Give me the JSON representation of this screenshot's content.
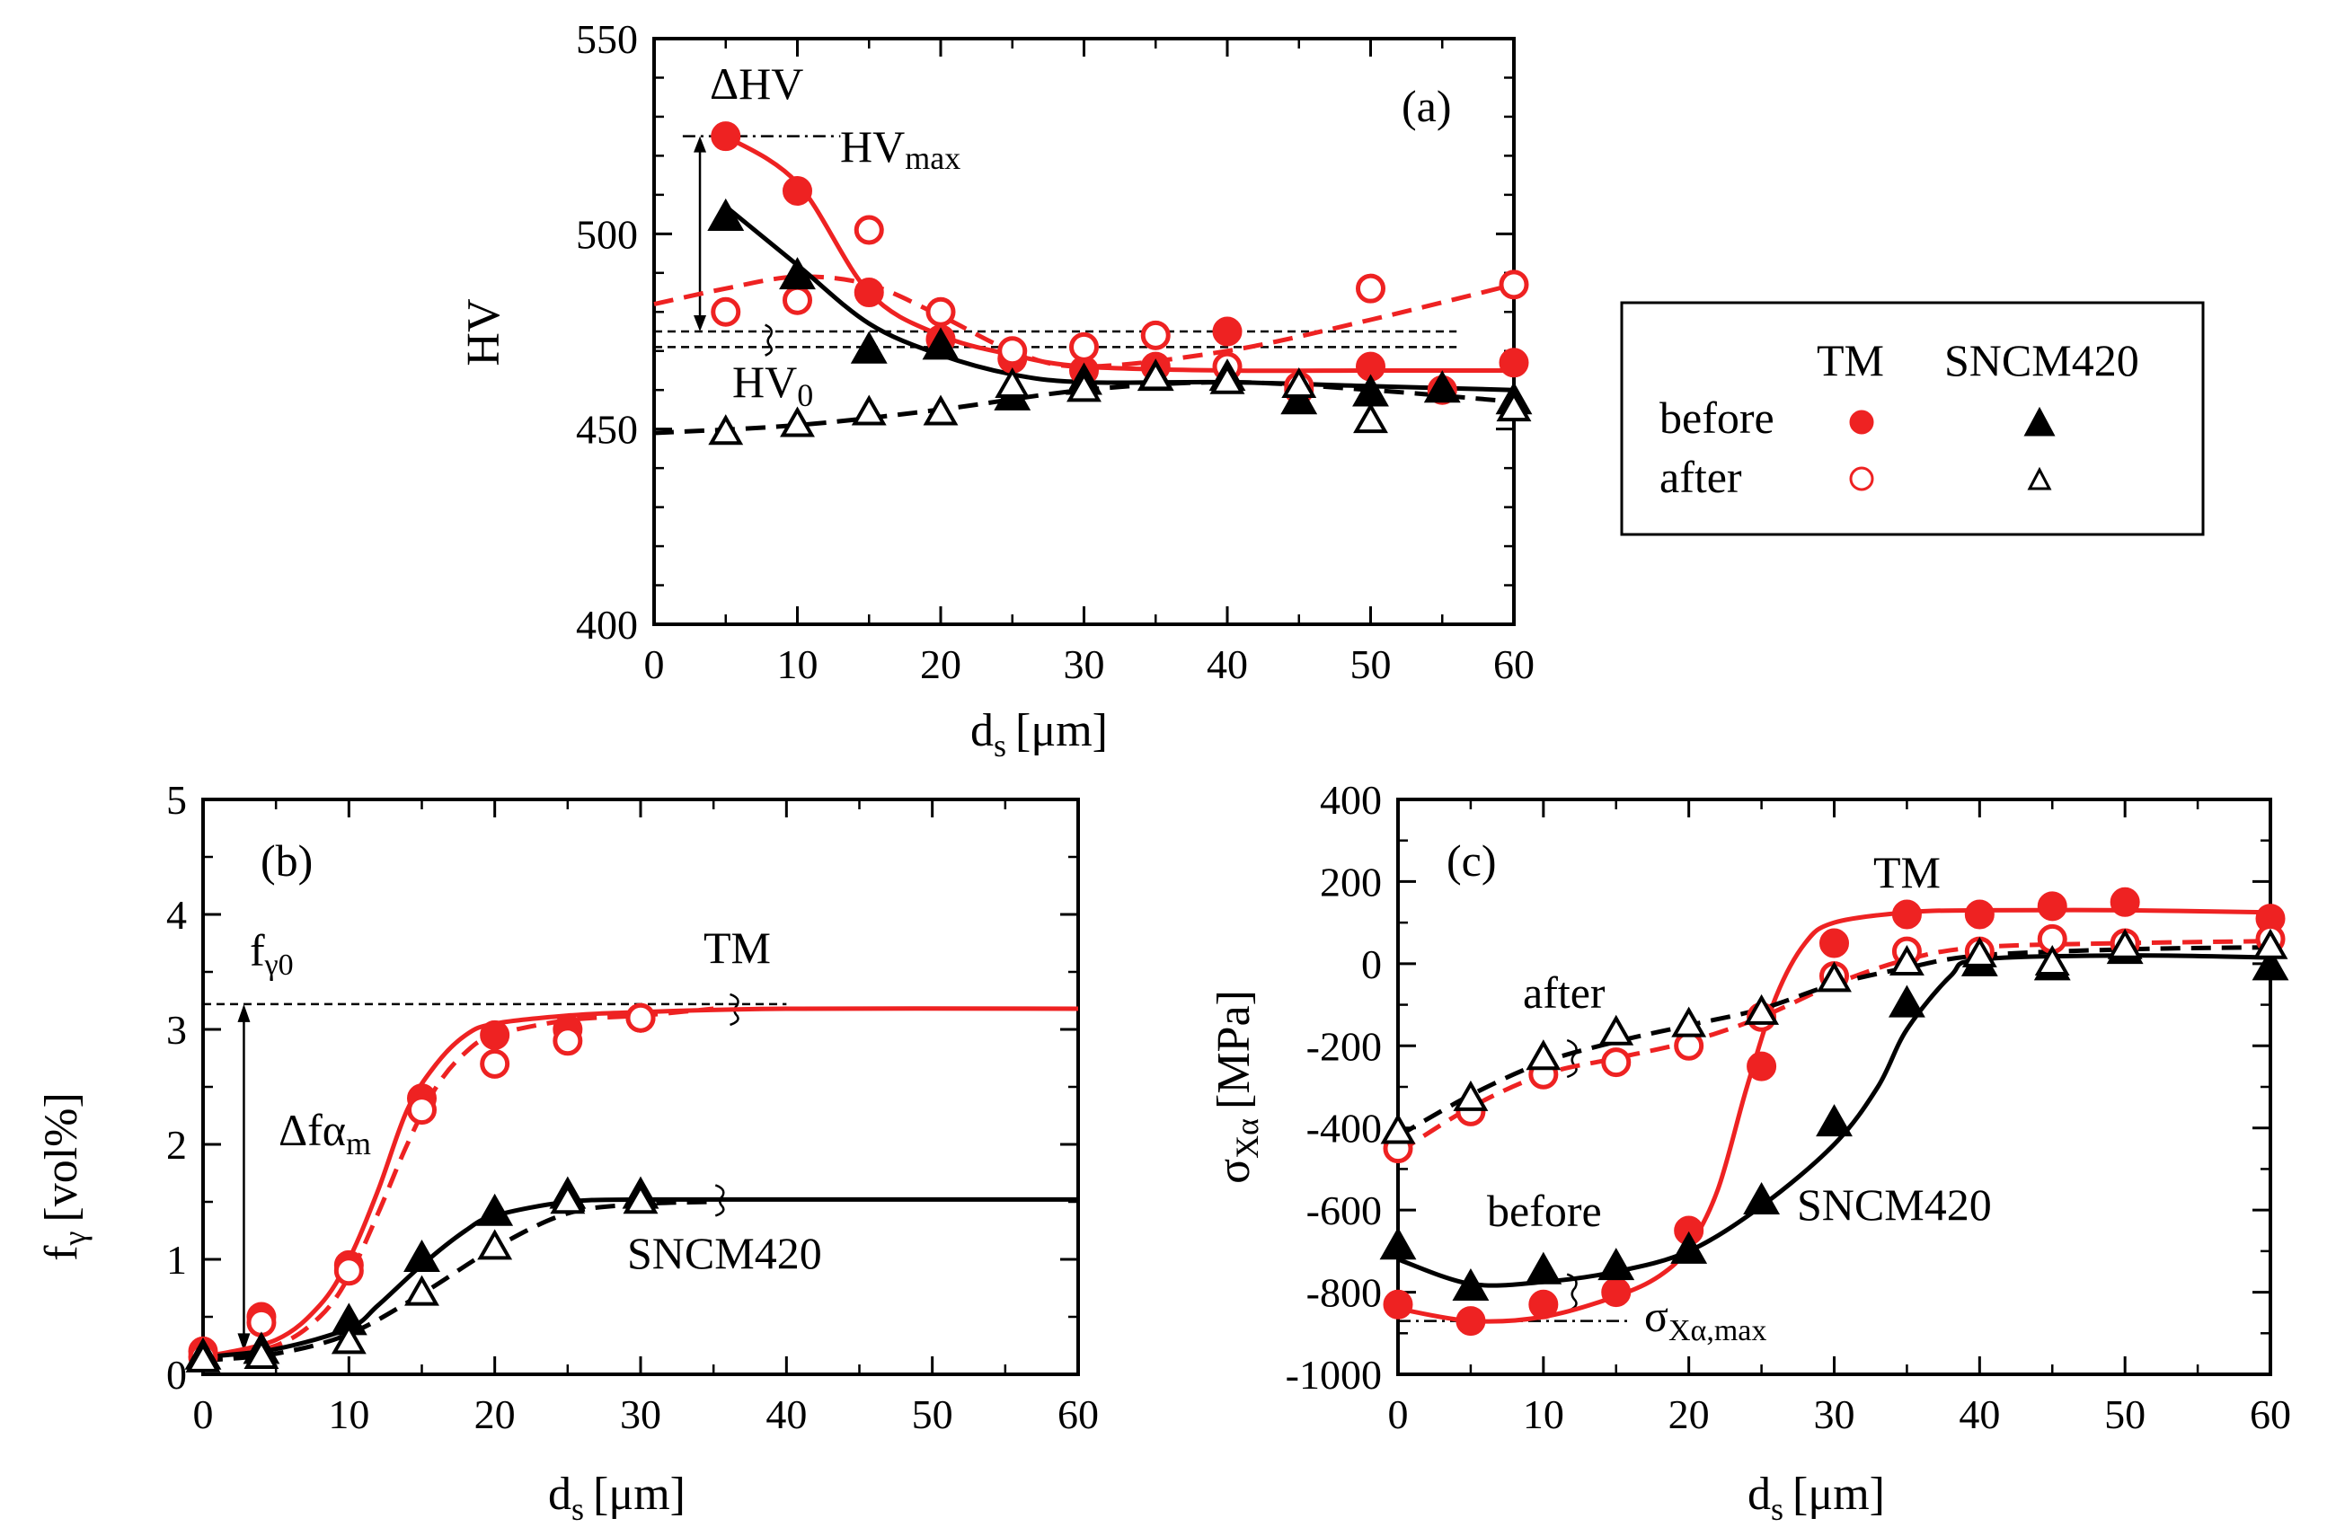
{
  "chart_data": [
    {
      "id": "a",
      "type": "scatter",
      "panel_label": "(a)",
      "xlabel": "d",
      "xlabel_sub": "s",
      "xlabel_unit": "[μm]",
      "ylabel": "HV",
      "xlim": [
        0,
        60
      ],
      "ylim": [
        400,
        550
      ],
      "xticks": [
        0,
        10,
        20,
        30,
        40,
        50,
        60
      ],
      "yticks": [
        400,
        450,
        500,
        550
      ],
      "series": [
        {
          "name": "TM before",
          "color": "#ee2222",
          "marker": "circle",
          "filled": true,
          "x": [
            5,
            10,
            15,
            20,
            25,
            30,
            35,
            40,
            45,
            50,
            55,
            60
          ],
          "y": [
            525,
            511,
            485,
            473,
            468,
            465,
            466,
            475,
            460,
            466,
            460,
            467
          ],
          "fit": {
            "dash": false,
            "x": [
              5,
              10,
              15,
              20,
              25,
              30,
              40,
              50,
              60
            ],
            "y": [
              525,
              513,
              485,
              474,
              469,
              466,
              465,
              465,
              465
            ]
          }
        },
        {
          "name": "TM after",
          "color": "#ee2222",
          "marker": "circle",
          "filled": false,
          "x": [
            5,
            10,
            15,
            20,
            25,
            30,
            35,
            40,
            45,
            50,
            60
          ],
          "y": [
            480,
            483,
            501,
            480,
            470,
            471,
            474,
            466,
            461,
            486,
            487
          ],
          "fit": {
            "dash": true,
            "x": [
              0,
              5,
              10,
              15,
              20,
              25,
              30,
              40,
              50,
              60
            ],
            "y": [
              482,
              486,
              489,
              487,
              479,
              470,
              466,
              470,
              478,
              487
            ]
          }
        },
        {
          "name": "SNCM420 before",
          "color": "#000000",
          "marker": "triangle",
          "filled": true,
          "x": [
            5,
            10,
            15,
            20,
            25,
            30,
            35,
            40,
            45,
            50,
            55,
            60
          ],
          "y": [
            504,
            489,
            470,
            471,
            458,
            462,
            463,
            463,
            457,
            459,
            460,
            457
          ],
          "fit": {
            "dash": false,
            "x": [
              5,
              10,
              15,
              20,
              25,
              30,
              40,
              50,
              60
            ],
            "y": [
              507,
              492,
              477,
              469,
              464,
              462,
              462,
              461,
              460
            ]
          }
        },
        {
          "name": "SNCM420 after",
          "color": "#000000",
          "marker": "triangle",
          "filled": false,
          "x": [
            5,
            10,
            15,
            20,
            25,
            30,
            35,
            40,
            45,
            50,
            60
          ],
          "y": [
            449,
            451,
            454,
            454,
            461,
            460,
            463,
            462,
            461,
            452,
            455
          ],
          "fit": {
            "dash": true,
            "x": [
              0,
              10,
              20,
              30,
              40,
              50,
              60
            ],
            "y": [
              449,
              451,
              455,
              460,
              462,
              460,
              457
            ]
          }
        }
      ],
      "annotations": [
        "ΔHV",
        "HV",
        "max",
        "HV",
        "0"
      ],
      "reference_lines": {
        "hv_max": 525,
        "hv0_upper": 475,
        "hv0_lower": 471
      }
    },
    {
      "id": "b",
      "type": "scatter",
      "panel_label": "(b)",
      "xlabel": "d",
      "xlabel_sub": "s",
      "xlabel_unit": "[μm]",
      "ylabel": "f",
      "ylabel_sub": "γ",
      "ylabel_unit": "[vol%]",
      "xlim": [
        0,
        60
      ],
      "ylim": [
        0,
        5
      ],
      "xticks": [
        0,
        10,
        20,
        30,
        40,
        50,
        60
      ],
      "yticks": [
        0,
        1,
        2,
        3,
        4,
        5
      ],
      "series": [
        {
          "name": "TM before",
          "color": "#ee2222",
          "marker": "circle",
          "filled": true,
          "x": [
            0,
            4,
            10,
            15,
            20,
            25,
            30
          ],
          "y": [
            0.2,
            0.5,
            0.95,
            2.4,
            2.95,
            3.0,
            3.1
          ],
          "fit": {
            "dash": false,
            "x": [
              0,
              5,
              8,
              10,
              12,
              14,
              16,
              18,
              20,
              25,
              30,
              40,
              60
            ],
            "y": [
              0.15,
              0.3,
              0.6,
              1.0,
              1.6,
              2.3,
              2.7,
              2.95,
              3.05,
              3.12,
              3.15,
              3.18,
              3.18
            ]
          }
        },
        {
          "name": "TM after",
          "color": "#ee2222",
          "marker": "circle",
          "filled": false,
          "x": [
            0,
            4,
            10,
            15,
            20,
            25,
            30
          ],
          "y": [
            0.15,
            0.45,
            0.9,
            2.3,
            2.7,
            2.9,
            3.1
          ],
          "fit": {
            "dash": true,
            "x": [
              0,
              5,
              8,
              10,
              12,
              14,
              16,
              18,
              20,
              25,
              30,
              35
            ],
            "y": [
              0.12,
              0.25,
              0.5,
              0.85,
              1.4,
              2.0,
              2.5,
              2.8,
              2.95,
              3.08,
              3.12,
              3.18
            ]
          }
        },
        {
          "name": "SNCM420 before",
          "color": "#000000",
          "marker": "triangle",
          "filled": true,
          "x": [
            0,
            4,
            10,
            15,
            20,
            25,
            30
          ],
          "y": [
            0.15,
            0.2,
            0.45,
            1.0,
            1.4,
            1.55,
            1.55
          ],
          "fit": {
            "dash": false,
            "x": [
              0,
              5,
              10,
              12,
              15,
              18,
              20,
              25,
              30,
              40,
              60
            ],
            "y": [
              0.15,
              0.22,
              0.4,
              0.6,
              0.95,
              1.25,
              1.38,
              1.5,
              1.52,
              1.52,
              1.52
            ]
          }
        },
        {
          "name": "SNCM420 after",
          "color": "#000000",
          "marker": "triangle",
          "filled": false,
          "x": [
            0,
            4,
            10,
            15,
            20,
            25,
            30
          ],
          "y": [
            0.12,
            0.15,
            0.28,
            0.7,
            1.1,
            1.5,
            1.5
          ],
          "fit": {
            "dash": true,
            "x": [
              0,
              5,
              10,
              15,
              20,
              25,
              30,
              35
            ],
            "y": [
              0.12,
              0.18,
              0.35,
              0.7,
              1.1,
              1.4,
              1.48,
              1.5
            ]
          }
        }
      ],
      "annotations": [
        "f",
        "γ0",
        "Δfα",
        "m",
        "TM",
        "SNCM420"
      ],
      "reference_lines": {
        "f_gamma0": 3.22
      }
    },
    {
      "id": "c",
      "type": "scatter",
      "panel_label": "(c)",
      "xlabel": "d",
      "xlabel_sub": "s",
      "xlabel_unit": "[μm]",
      "ylabel": "σ",
      "ylabel_sub": "Xα",
      "ylabel_unit": "[MPa]",
      "xlim": [
        0,
        60
      ],
      "ylim": [
        -1000,
        400
      ],
      "xticks": [
        0,
        10,
        20,
        30,
        40,
        50,
        60
      ],
      "yticks": [
        -1000,
        -800,
        -600,
        -400,
        -200,
        0,
        200,
        400
      ],
      "series": [
        {
          "name": "TM before",
          "color": "#ee2222",
          "marker": "circle",
          "filled": true,
          "x": [
            0,
            5,
            10,
            15,
            20,
            25,
            30,
            35,
            40,
            45,
            50,
            60
          ],
          "y": [
            -830,
            -870,
            -830,
            -800,
            -650,
            -250,
            50,
            120,
            120,
            140,
            150,
            110
          ],
          "fit": {
            "dash": false,
            "x": [
              0,
              5,
              10,
              15,
              18,
              20,
              22,
              24,
              26,
              28,
              30,
              35,
              40,
              50,
              60
            ],
            "y": [
              -840,
              -870,
              -860,
              -810,
              -760,
              -690,
              -550,
              -300,
              -80,
              50,
              100,
              125,
              130,
              130,
              125
            ]
          }
        },
        {
          "name": "TM after",
          "color": "#ee2222",
          "marker": "circle",
          "filled": false,
          "x": [
            0,
            5,
            10,
            15,
            20,
            25,
            30,
            35,
            40,
            45,
            50,
            60
          ],
          "y": [
            -450,
            -360,
            -270,
            -240,
            -200,
            -130,
            -30,
            30,
            30,
            60,
            50,
            60
          ],
          "fit": {
            "dash": true,
            "x": [
              0,
              5,
              10,
              15,
              20,
              25,
              30,
              35,
              40,
              50,
              60
            ],
            "y": [
              -460,
              -350,
              -270,
              -230,
              -190,
              -130,
              -50,
              10,
              40,
              50,
              55
            ]
          }
        },
        {
          "name": "SNCM420 before",
          "color": "#000000",
          "marker": "triangle",
          "filled": true,
          "x": [
            0,
            5,
            10,
            15,
            20,
            25,
            30,
            35,
            40,
            45,
            50,
            60
          ],
          "y": [
            -690,
            -790,
            -750,
            -740,
            -700,
            -580,
            -390,
            -100,
            0,
            -10,
            30,
            -10
          ],
          "fit": {
            "dash": false,
            "x": [
              0,
              5,
              10,
              15,
              20,
              25,
              30,
              33,
              35,
              38,
              40,
              50,
              60
            ],
            "y": [
              -720,
              -780,
              -775,
              -750,
              -700,
              -590,
              -440,
              -300,
              -160,
              -30,
              10,
              20,
              15
            ]
          }
        },
        {
          "name": "SNCM420 after",
          "color": "#000000",
          "marker": "triangle",
          "filled": false,
          "x": [
            0,
            5,
            10,
            15,
            20,
            25,
            30,
            35,
            40,
            45,
            50,
            60
          ],
          "y": [
            -410,
            -330,
            -230,
            -170,
            -150,
            -120,
            -40,
            0,
            20,
            0,
            40,
            40
          ],
          "fit": {
            "dash": true,
            "x": [
              0,
              5,
              10,
              15,
              20,
              25,
              30,
              35,
              40,
              50,
              60
            ],
            "y": [
              -420,
              -320,
              -240,
              -190,
              -150,
              -110,
              -50,
              -10,
              20,
              35,
              40
            ]
          }
        }
      ],
      "annotations": [
        "TM",
        "after",
        "before",
        "SNCM420",
        "σ",
        "Xα,max"
      ],
      "reference_lines": {
        "sigma_max": -870
      }
    }
  ],
  "legend": {
    "header_tm": "TM",
    "header_sncm": "SNCM420",
    "row_before": "before",
    "row_after": "after"
  }
}
